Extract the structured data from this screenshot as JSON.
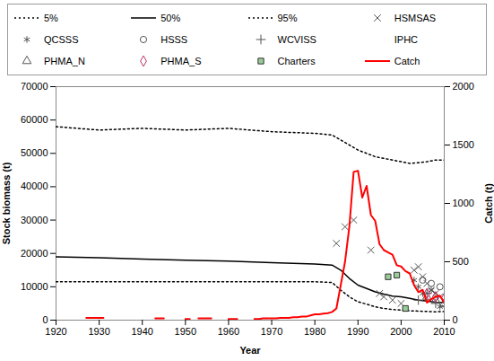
{
  "chart_data": {
    "type": "line",
    "legend": "top",
    "x_label": "Year",
    "y_label": "Stock biomass (t)",
    "y2_label": "Catch (t)",
    "xlim": [
      1920,
      2010
    ],
    "xticks": [
      1920,
      1930,
      1940,
      1950,
      1960,
      1970,
      1980,
      1990,
      2000,
      2010
    ],
    "ylim": [
      0,
      70000
    ],
    "yticks": [
      0,
      10000,
      20000,
      30000,
      40000,
      50000,
      60000,
      70000
    ],
    "y2lim": [
      0,
      2000
    ],
    "y2ticks": [
      0,
      500,
      1000,
      1500,
      2000
    ],
    "series": [
      {
        "name": "5%",
        "type": "line",
        "line_style": "dotted",
        "color": "#000000",
        "x": [
          1920,
          1930,
          1940,
          1950,
          1960,
          1970,
          1980,
          1984,
          1986,
          1988,
          1990,
          1992,
          1994,
          1996,
          1998,
          2000,
          2002,
          2004,
          2006,
          2008,
          2010
        ],
        "values": [
          11500,
          11500,
          11500,
          11500,
          11500,
          11500,
          11500,
          11300,
          9000,
          7000,
          5500,
          4800,
          4000,
          3500,
          3200,
          3000,
          2800,
          2700,
          2600,
          2500,
          2600
        ]
      },
      {
        "name": "50%",
        "type": "line",
        "line_style": "solid",
        "color": "#000000",
        "x": [
          1920,
          1930,
          1940,
          1950,
          1960,
          1970,
          1980,
          1984,
          1986,
          1988,
          1990,
          1992,
          1994,
          1996,
          1998,
          2000,
          2002,
          2004,
          2006,
          2008,
          2010
        ],
        "values": [
          19000,
          18700,
          18300,
          18000,
          17700,
          17200,
          16800,
          16500,
          15000,
          12500,
          10500,
          9500,
          8500,
          7800,
          7200,
          7000,
          6500,
          6000,
          5700,
          5400,
          5300
        ]
      },
      {
        "name": "95%",
        "type": "line",
        "line_style": "dotted",
        "color": "#000000",
        "x": [
          1920,
          1930,
          1940,
          1950,
          1960,
          1970,
          1980,
          1984,
          1986,
          1988,
          1990,
          1992,
          1994,
          1996,
          1998,
          2000,
          2002,
          2004,
          2006,
          2008,
          2010
        ],
        "values": [
          58000,
          57000,
          57500,
          57000,
          57500,
          56500,
          56000,
          55500,
          54000,
          52500,
          51000,
          50000,
          49000,
          48500,
          48000,
          47500,
          47000,
          47200,
          47500,
          48000,
          48000
        ]
      },
      {
        "name": "HSMSAS",
        "type": "scatter",
        "marker": "times",
        "color": "#555555",
        "x": [
          1985,
          1987,
          1989,
          1993,
          1995,
          1996,
          1998,
          2000,
          2003,
          2004,
          2005,
          2006,
          2007,
          2008,
          2009
        ],
        "values": [
          23000,
          28000,
          30000,
          21000,
          8000,
          7000,
          6000,
          5000,
          15000,
          16000,
          13000,
          11000,
          9000,
          8000,
          7000
        ]
      },
      {
        "name": "QCSSS",
        "type": "scatter",
        "marker": "asterisk",
        "color": "#555555",
        "x": [
          2003,
          2004,
          2005,
          2007,
          2009
        ],
        "values": [
          12000,
          10000,
          8000,
          9000,
          4000
        ]
      },
      {
        "name": "HSSS",
        "type": "scatter",
        "marker": "circle",
        "color": "#555555",
        "x": [
          2005,
          2007,
          2009
        ],
        "values": [
          12000,
          11000,
          10000
        ]
      },
      {
        "name": "WCVISS",
        "type": "scatter",
        "marker": "plus",
        "color": "#555555",
        "x": [
          2004,
          2006,
          2008,
          2010
        ],
        "values": [
          6000,
          8000,
          5000,
          4000
        ]
      },
      {
        "name": "IPHC",
        "type": "scatter",
        "marker": "none",
        "color": "#555555",
        "x": [],
        "values": []
      },
      {
        "name": "PHMA_N",
        "type": "scatter",
        "marker": "triangle",
        "color": "#555555",
        "x": [
          2006,
          2008,
          2010
        ],
        "values": [
          7000,
          6000,
          5000
        ]
      },
      {
        "name": "PHMA_S",
        "type": "scatter",
        "marker": "diamond",
        "color": "#c0306a",
        "x": [
          2006,
          2008,
          2010
        ],
        "values": [
          8000,
          7000,
          6500
        ]
      },
      {
        "name": "Charters",
        "type": "scatter",
        "marker": "square",
        "color": "#99cc99",
        "x": [
          1997,
          1999,
          2001
        ],
        "values": [
          13000,
          13500,
          3500
        ]
      },
      {
        "name": "Catch",
        "type": "line",
        "line_style": "solid",
        "color": "#ff0000",
        "axis": "y2",
        "x": [
          1920,
          1921,
          1922,
          1923,
          1924,
          1925,
          1926,
          1927,
          1928,
          1929,
          1930,
          1931,
          1932,
          1933,
          1934,
          1935,
          1936,
          1937,
          1938,
          1939,
          1940,
          1941,
          1942,
          1943,
          1944,
          1945,
          1946,
          1947,
          1948,
          1949,
          1950,
          1951,
          1952,
          1953,
          1954,
          1955,
          1956,
          1957,
          1958,
          1959,
          1960,
          1961,
          1962,
          1963,
          1964,
          1965,
          1966,
          1967,
          1968,
          1969,
          1970,
          1971,
          1972,
          1973,
          1974,
          1975,
          1976,
          1977,
          1978,
          1979,
          1980,
          1981,
          1982,
          1983,
          1984,
          1985,
          1986,
          1987,
          1988,
          1989,
          1990,
          1991,
          1992,
          1993,
          1994,
          1995,
          1996,
          1997,
          1998,
          1999,
          2000,
          2001,
          2002,
          2003,
          2004,
          2005,
          2006,
          2007,
          2008,
          2009,
          2010
        ],
        "values": [
          null,
          null,
          null,
          null,
          null,
          null,
          null,
          20,
          20,
          20,
          20,
          20,
          null,
          null,
          null,
          null,
          null,
          null,
          null,
          null,
          null,
          null,
          null,
          15,
          15,
          15,
          null,
          null,
          null,
          null,
          10,
          10,
          null,
          15,
          15,
          15,
          15,
          null,
          null,
          null,
          10,
          10,
          10,
          null,
          null,
          null,
          10,
          10,
          15,
          15,
          15,
          15,
          20,
          20,
          20,
          25,
          25,
          30,
          30,
          40,
          50,
          50,
          55,
          60,
          70,
          100,
          300,
          500,
          800,
          1270,
          1280,
          1050,
          1150,
          900,
          850,
          650,
          600,
          580,
          560,
          470,
          460,
          420,
          400,
          300,
          240,
          260,
          150,
          180,
          200,
          210,
          150
        ]
      }
    ]
  }
}
